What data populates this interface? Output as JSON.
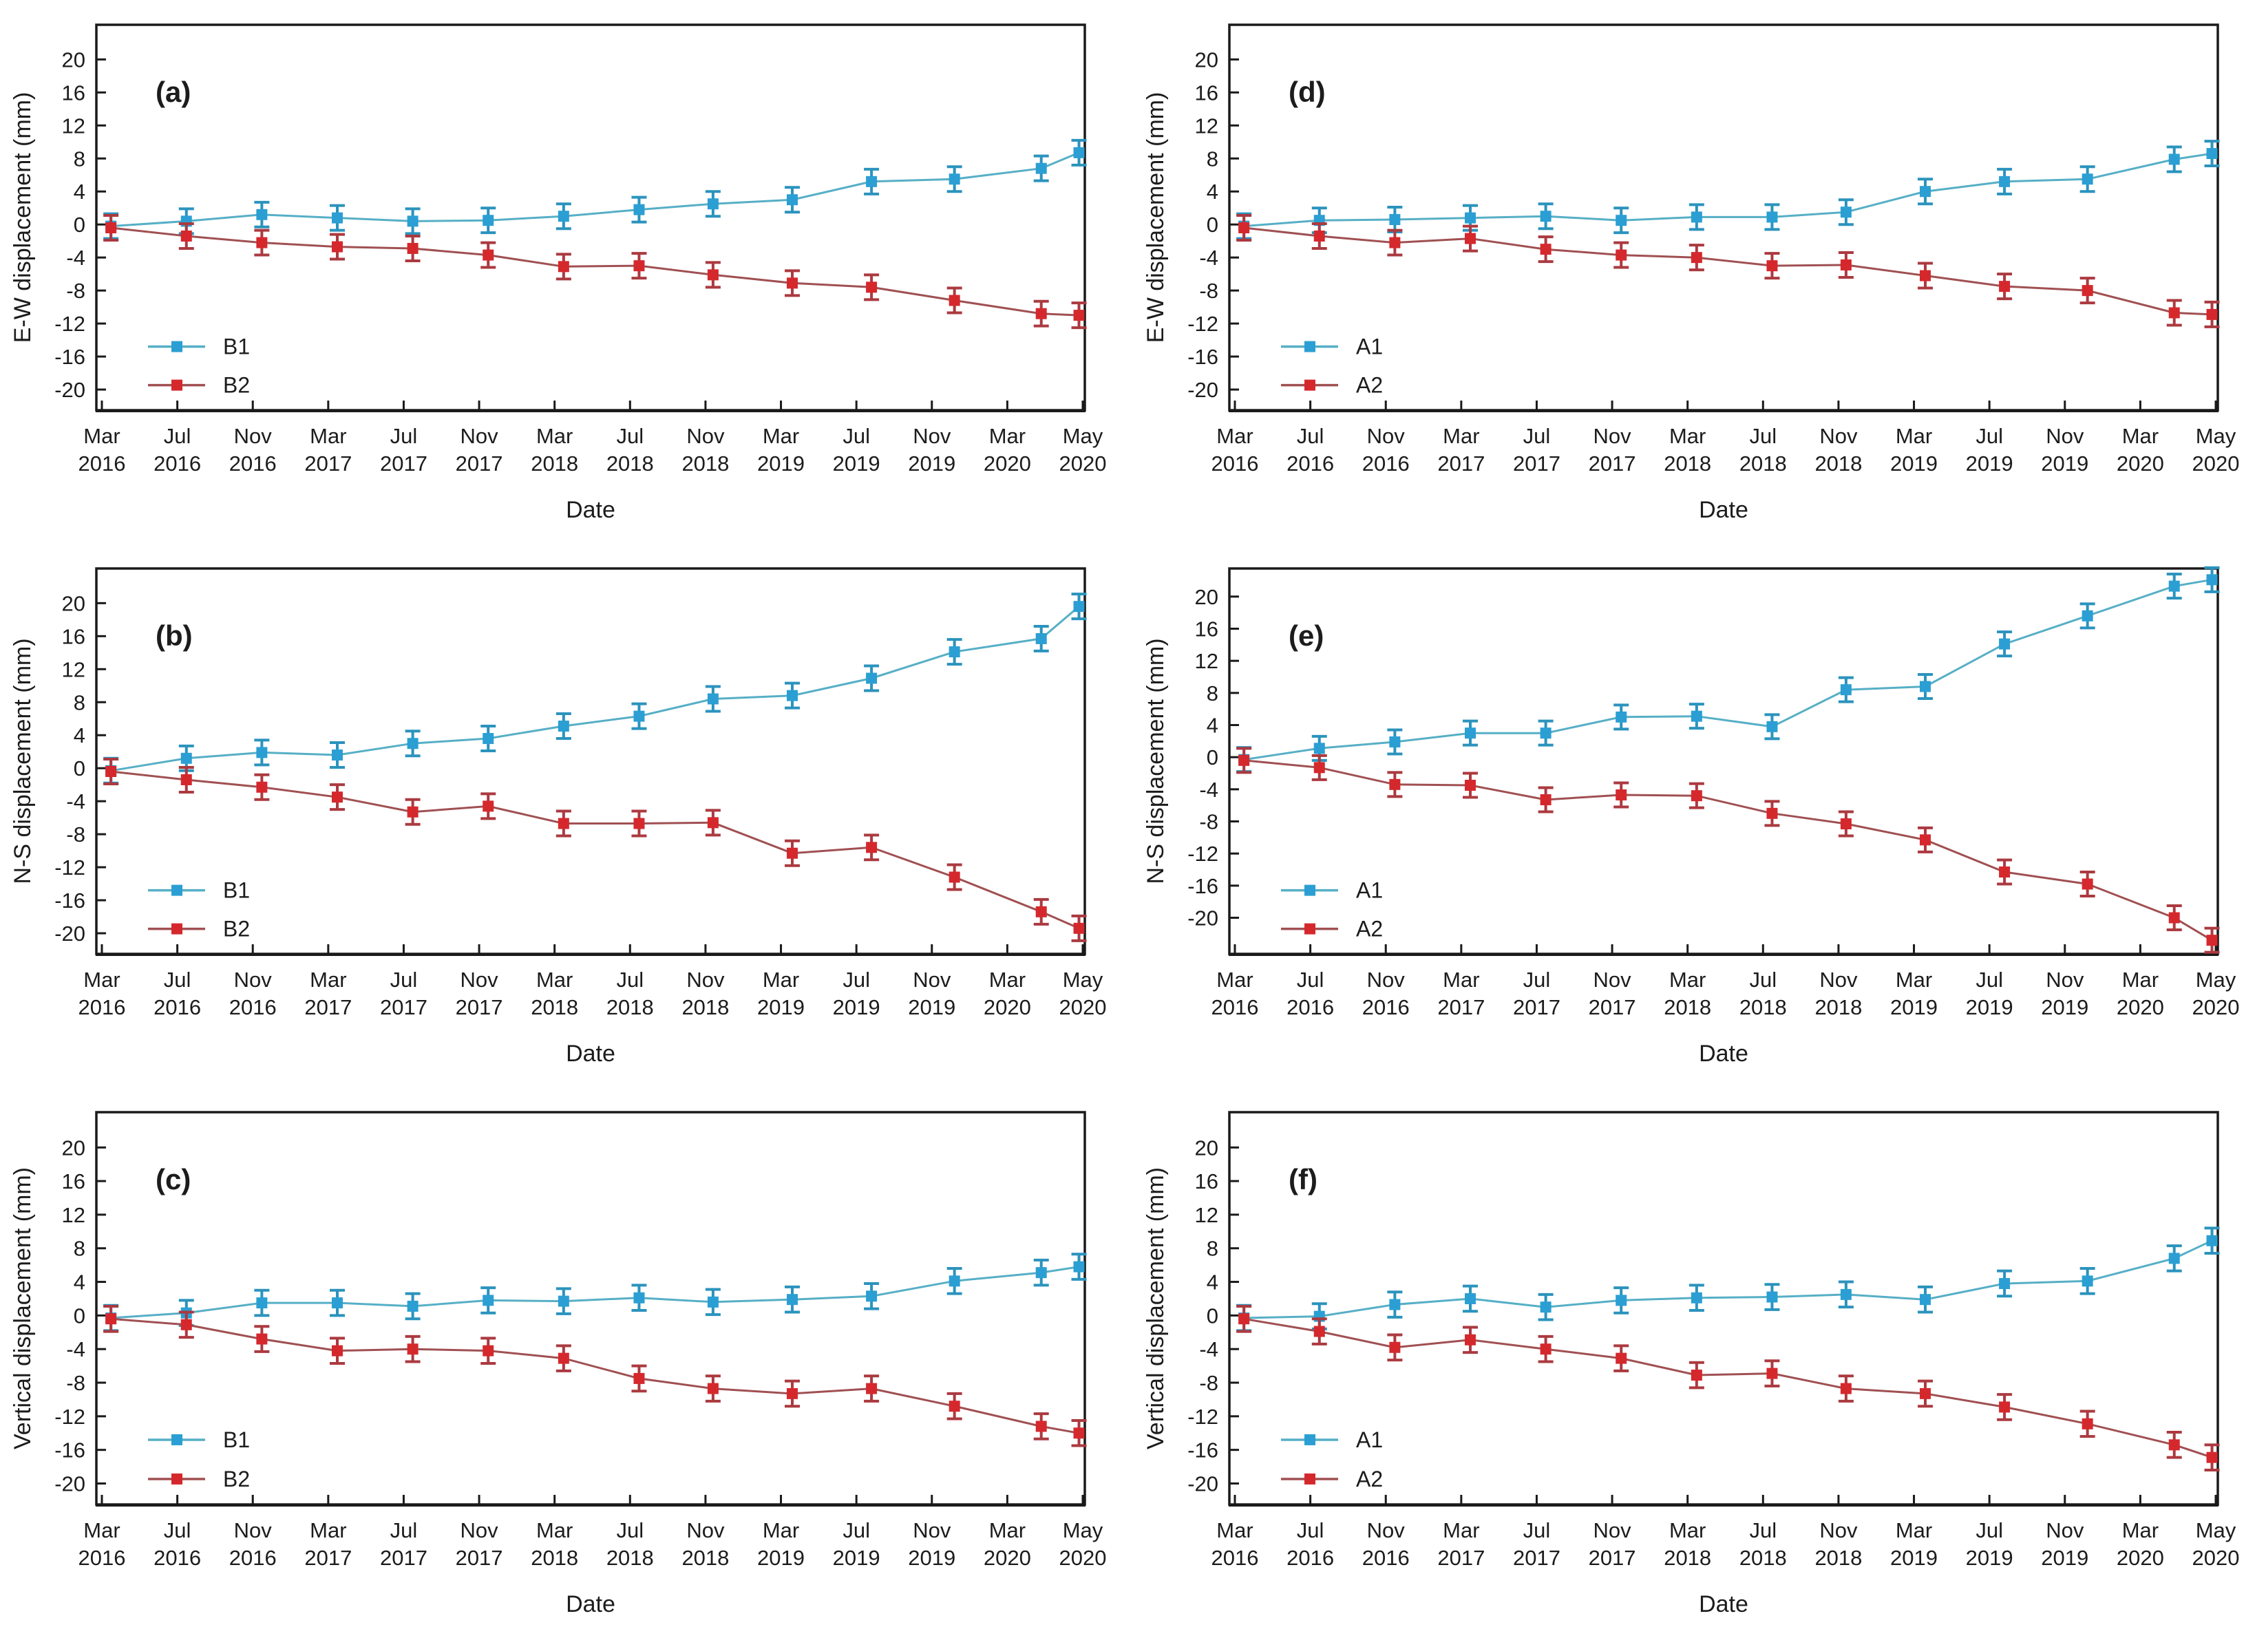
{
  "figure": {
    "background": "#ffffff",
    "description_note": "Six-panel GPS displacement time series figure",
    "panel_order": [
      "a",
      "b",
      "c",
      "d",
      "e",
      "f"
    ]
  },
  "colors": {
    "blue_marker": "#2b9fd3",
    "blue_line": "#56afc6",
    "blue_error": "#2b93bd",
    "red_marker": "#d5282d",
    "red_line": "#a05052",
    "red_error": "#ab3a40",
    "axis": "#1a1a1a",
    "text": "#1c1c1c"
  },
  "axes_shared": {
    "x_label": "Date",
    "x_tick_labels": [
      [
        "Mar",
        "2016"
      ],
      [
        "Jul",
        "2016"
      ],
      [
        "Nov",
        "2016"
      ],
      [
        "Mar",
        "2017"
      ],
      [
        "Jul",
        "2017"
      ],
      [
        "Nov",
        "2017"
      ],
      [
        "Mar",
        "2018"
      ],
      [
        "Jul",
        "2018"
      ],
      [
        "Nov",
        "2018"
      ],
      [
        "Mar",
        "2019"
      ],
      [
        "Jul",
        "2019"
      ],
      [
        "Nov",
        "2019"
      ],
      [
        "Mar",
        "2020"
      ],
      [
        "May",
        "2020"
      ]
    ],
    "x_positions": [
      0.12,
      1.12,
      2.12,
      3.12,
      4.12,
      5.12,
      6.12,
      7.12,
      8.1,
      9.15,
      10.2,
      11.3,
      12.45,
      12.95
    ],
    "y_tick_values": [
      20,
      16,
      12,
      8,
      4,
      0,
      -4,
      -8,
      -12,
      -16,
      -20
    ],
    "default_ylim": [
      -22.5,
      24.2
    ],
    "grid": "off",
    "legend_position": "lower-left-inside"
  },
  "chart_data": [
    {
      "id": "a",
      "type": "line",
      "panel_label": "(a)",
      "ylabel": "E-W displacement (mm)",
      "xlabel": "Date",
      "ylim": [
        -22.5,
        24.2
      ],
      "series": [
        {
          "name": "B1",
          "color": "blue",
          "error": 1.5,
          "values": [
            -0.2,
            0.4,
            1.2,
            0.8,
            0.4,
            0.5,
            1.0,
            1.8,
            2.5,
            3.0,
            5.2,
            5.5,
            6.8,
            8.7
          ]
        },
        {
          "name": "B2",
          "color": "red",
          "error": 1.5,
          "values": [
            -0.4,
            -1.4,
            -2.2,
            -2.7,
            -2.9,
            -3.7,
            -5.1,
            -5.0,
            -6.1,
            -7.1,
            -7.6,
            -9.2,
            -10.8,
            -11.0
          ]
        }
      ]
    },
    {
      "id": "b",
      "type": "line",
      "panel_label": "(b)",
      "ylabel": "N-S displacement (mm)",
      "xlabel": "Date",
      "ylim": [
        -22.5,
        24.2
      ],
      "series": [
        {
          "name": "B1",
          "color": "blue",
          "error": 1.5,
          "values": [
            -0.3,
            1.2,
            1.9,
            1.6,
            3.0,
            3.6,
            5.1,
            6.3,
            8.4,
            8.8,
            10.9,
            14.1,
            15.7,
            19.6
          ]
        },
        {
          "name": "B2",
          "color": "red",
          "error": 1.5,
          "values": [
            -0.4,
            -1.4,
            -2.3,
            -3.5,
            -5.3,
            -4.6,
            -6.7,
            -6.7,
            -6.6,
            -10.3,
            -9.6,
            -13.2,
            -17.4,
            -19.4
          ]
        }
      ]
    },
    {
      "id": "c",
      "type": "line",
      "panel_label": "(c)",
      "ylabel": "Vertical displacement (mm)",
      "xlabel": "Date",
      "ylim": [
        -22.5,
        24.2
      ],
      "series": [
        {
          "name": "B1",
          "color": "blue",
          "error": 1.5,
          "values": [
            -0.3,
            0.3,
            1.5,
            1.5,
            1.1,
            1.8,
            1.7,
            2.1,
            1.6,
            1.9,
            2.3,
            4.1,
            5.1,
            5.8
          ]
        },
        {
          "name": "B2",
          "color": "red",
          "error": 1.5,
          "values": [
            -0.4,
            -1.1,
            -2.8,
            -4.2,
            -4.0,
            -4.2,
            -5.1,
            -7.5,
            -8.7,
            -9.3,
            -8.7,
            -10.8,
            -13.2,
            -14.0
          ]
        }
      ]
    },
    {
      "id": "d",
      "type": "line",
      "panel_label": "(d)",
      "ylabel": "E-W displacement (mm)",
      "xlabel": "Date",
      "ylim": [
        -22.5,
        24.2
      ],
      "series": [
        {
          "name": "A1",
          "color": "blue",
          "error": 1.5,
          "values": [
            -0.2,
            0.5,
            0.6,
            0.8,
            1.0,
            0.5,
            0.9,
            0.9,
            1.5,
            4.0,
            5.2,
            5.5,
            7.9,
            8.6
          ]
        },
        {
          "name": "A2",
          "color": "red",
          "error": 1.5,
          "values": [
            -0.4,
            -1.4,
            -2.2,
            -1.7,
            -3.0,
            -3.7,
            -4.0,
            -5.0,
            -4.9,
            -6.2,
            -7.5,
            -8.0,
            -10.7,
            -10.9
          ]
        }
      ]
    },
    {
      "id": "e",
      "type": "line",
      "panel_label": "(e)",
      "ylabel": "N-S displacement (mm)",
      "xlabel": "Date",
      "ylim": [
        -24.5,
        23.5
      ],
      "series": [
        {
          "name": "A1",
          "color": "blue",
          "error": 1.5,
          "values": [
            -0.3,
            1.1,
            1.9,
            3.0,
            3.0,
            5.0,
            5.1,
            3.8,
            8.4,
            8.8,
            14.1,
            17.6,
            21.3,
            22.1
          ]
        },
        {
          "name": "A2",
          "color": "red",
          "error": 1.5,
          "values": [
            -0.4,
            -1.3,
            -3.4,
            -3.5,
            -5.3,
            -4.7,
            -4.8,
            -7.0,
            -8.3,
            -10.3,
            -14.3,
            -15.8,
            -20.0,
            -22.8
          ]
        }
      ]
    },
    {
      "id": "f",
      "type": "line",
      "panel_label": "(f)",
      "ylabel": "Vertical displacement (mm)",
      "xlabel": "Date",
      "ylim": [
        -22.5,
        24.2
      ],
      "series": [
        {
          "name": "A1",
          "color": "blue",
          "error": 1.5,
          "values": [
            -0.3,
            -0.1,
            1.3,
            2.0,
            1.0,
            1.8,
            2.1,
            2.2,
            2.5,
            1.9,
            3.8,
            4.1,
            6.8,
            8.9
          ]
        },
        {
          "name": "A2",
          "color": "red",
          "error": 1.5,
          "values": [
            -0.4,
            -1.9,
            -3.8,
            -2.9,
            -4.0,
            -5.1,
            -7.1,
            -6.9,
            -8.7,
            -9.3,
            -10.9,
            -12.9,
            -15.4,
            -16.9
          ]
        }
      ]
    }
  ]
}
